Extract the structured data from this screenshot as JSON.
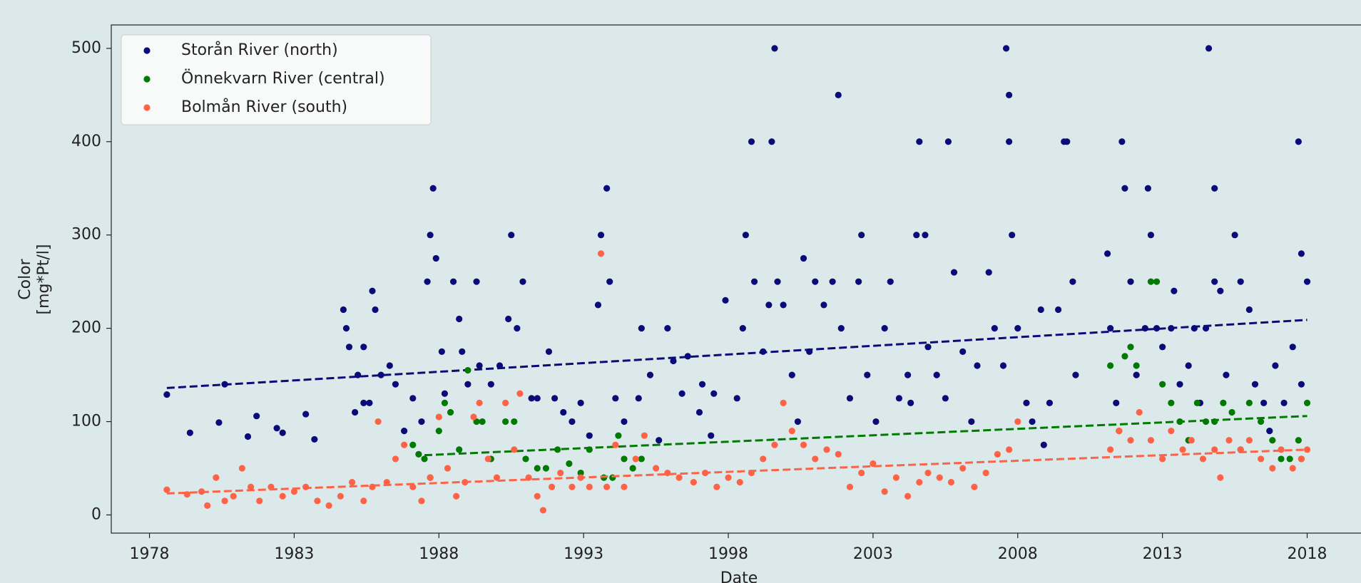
{
  "chart_data": {
    "type": "scatter",
    "xlabel": "Date",
    "ylabel": [
      "Color",
      "[mg*Pt/l]"
    ],
    "xlim": [
      1976.68,
      2019.86
    ],
    "ylim": [
      -19.5,
      525.1
    ],
    "xticks": [
      1978,
      1983,
      1988,
      1993,
      1998,
      2003,
      2008,
      2013,
      2018
    ],
    "yticks": [
      0,
      100,
      200,
      300,
      400,
      500
    ],
    "legend": "upper left",
    "series": [
      {
        "name": "Storån River (north)",
        "color": "#0b0b78",
        "x": [
          1978.6,
          1979.4,
          1980.4,
          1980.6,
          1981.4,
          1981.7,
          1982.4,
          1982.6,
          1983.4,
          1983.7,
          1984.7,
          1984.8,
          1984.9,
          1985.1,
          1985.2,
          1985.4,
          1985.4,
          1985.6,
          1985.7,
          1985.8,
          1986.0,
          1986.3,
          1986.5,
          1986.8,
          1987.1,
          1987.4,
          1987.6,
          1987.7,
          1987.8,
          1987.9,
          1988.1,
          1988.2,
          1988.5,
          1988.7,
          1988.8,
          1989.0,
          1989.3,
          1989.4,
          1989.8,
          1990.1,
          1990.4,
          1990.5,
          1990.7,
          1990.9,
          1991.2,
          1991.4,
          1991.8,
          1992.0,
          1992.3,
          1992.6,
          1992.9,
          1993.2,
          1993.5,
          1993.6,
          1993.8,
          1993.9,
          1994.1,
          1994.4,
          1994.9,
          1995.0,
          1995.3,
          1995.6,
          1995.9,
          1996.1,
          1996.4,
          1996.6,
          1997.0,
          1997.1,
          1997.4,
          1997.5,
          1997.9,
          1998.3,
          1998.5,
          1998.6,
          1998.8,
          1998.9,
          1999.2,
          1999.4,
          1999.5,
          1999.6,
          1999.7,
          1999.9,
          2000.2,
          2000.4,
          2000.6,
          2000.8,
          2001.0,
          2001.3,
          2001.6,
          2001.8,
          2001.9,
          2002.2,
          2002.5,
          2002.6,
          2002.8,
          2003.1,
          2003.4,
          2003.6,
          2003.9,
          2004.2,
          2004.3,
          2004.5,
          2004.6,
          2004.8,
          2004.9,
          2005.2,
          2005.5,
          2005.6,
          2005.8,
          2006.1,
          2006.4,
          2006.6,
          2007.0,
          2007.2,
          2007.5,
          2007.6,
          2007.7,
          2007.7,
          2007.8,
          2008.0,
          2008.3,
          2008.5,
          2008.8,
          2008.9,
          2009.1,
          2009.4,
          2009.6,
          2009.7,
          2009.9,
          2010.0,
          2011.1,
          2011.2,
          2011.4,
          2011.6,
          2011.7,
          2011.9,
          2012.1,
          2012.4,
          2012.5,
          2012.6,
          2012.8,
          2013.0,
          2013.3,
          2013.4,
          2013.6,
          2013.9,
          2014.1,
          2014.3,
          2014.5,
          2014.6,
          2014.8,
          2014.8,
          2015.0,
          2015.2,
          2015.5,
          2015.7,
          2016.0,
          2016.2,
          2016.5,
          2016.7,
          2016.9,
          2017.2,
          2017.5,
          2017.7,
          2017.8,
          2018.0,
          2017.8
        ],
        "values": [
          129,
          88,
          99,
          140,
          84,
          106,
          93,
          88,
          108,
          81,
          220,
          200,
          180,
          110,
          150,
          120,
          180,
          120,
          240,
          220,
          150,
          160,
          140,
          90,
          125,
          100,
          250,
          300,
          350,
          275,
          175,
          130,
          250,
          210,
          175,
          140,
          250,
          160,
          140,
          160,
          210,
          300,
          200,
          250,
          125,
          125,
          175,
          125,
          110,
          100,
          120,
          85,
          225,
          300,
          350,
          250,
          125,
          100,
          125,
          200,
          150,
          80,
          200,
          165,
          130,
          170,
          110,
          140,
          85,
          130,
          230,
          125,
          200,
          300,
          400,
          250,
          175,
          225,
          400,
          500,
          250,
          225,
          150,
          100,
          275,
          175,
          250,
          225,
          250,
          450,
          200,
          125,
          250,
          300,
          150,
          100,
          200,
          250,
          125,
          150,
          120,
          300,
          400,
          300,
          180,
          150,
          125,
          400,
          260,
          175,
          100,
          160,
          260,
          200,
          160,
          500,
          450,
          400,
          300,
          200,
          120,
          100,
          220,
          75,
          120,
          220,
          400,
          400,
          250,
          150,
          280,
          200,
          120,
          400,
          350,
          250,
          150,
          200,
          350,
          300,
          200,
          180,
          200,
          240,
          140,
          160,
          200,
          120,
          200,
          500,
          250,
          350,
          240,
          150,
          300,
          250,
          220,
          140,
          120,
          90,
          160,
          120,
          180,
          400,
          280,
          250,
          140
        ],
        "trend": {
          "x": [
            1978.6,
            2018.0
          ],
          "values": [
            136,
            209
          ]
        }
      },
      {
        "name": "Önnekvarn River (central)",
        "color": "#007a00",
        "x": [
          1987.1,
          1987.3,
          1987.5,
          1987.7,
          1988.0,
          1988.2,
          1988.4,
          1988.7,
          1989.0,
          1989.3,
          1989.5,
          1989.8,
          1990.3,
          1990.6,
          1991.0,
          1991.4,
          1991.7,
          1992.1,
          1992.5,
          1992.9,
          1993.2,
          1993.7,
          1994.0,
          1994.2,
          1994.4,
          1994.7,
          1995.0,
          2011.2,
          2011.5,
          2011.7,
          2011.9,
          2012.1,
          2012.6,
          2012.8,
          2013.0,
          2013.3,
          2013.6,
          2013.9,
          2014.2,
          2014.5,
          2014.8,
          2015.1,
          2015.4,
          2015.7,
          2016.0,
          2016.4,
          2016.8,
          2017.1,
          2017.4,
          2017.7,
          2017.8,
          2018.0
        ],
        "values": [
          75,
          65,
          60,
          40,
          90,
          120,
          110,
          70,
          155,
          100,
          100,
          60,
          100,
          100,
          60,
          50,
          50,
          70,
          55,
          45,
          70,
          40,
          40,
          85,
          60,
          50,
          60,
          160,
          90,
          170,
          180,
          160,
          250,
          250,
          140,
          120,
          100,
          80,
          120,
          100,
          100,
          120,
          110,
          70,
          120,
          100,
          80,
          60,
          60,
          80,
          60,
          120
        ],
        "trend": {
          "x": [
            1987.5,
            2018.0
          ],
          "values": [
            64,
            106
          ]
        }
      },
      {
        "name": "Bolmån River (south)",
        "color": "#ff6347",
        "x": [
          1978.6,
          1979.3,
          1979.8,
          1980.0,
          1980.3,
          1980.6,
          1980.9,
          1981.2,
          1981.5,
          1981.8,
          1982.2,
          1982.6,
          1983.0,
          1983.4,
          1983.8,
          1984.2,
          1984.6,
          1985.0,
          1985.4,
          1985.7,
          1985.9,
          1986.2,
          1986.5,
          1986.8,
          1987.1,
          1987.4,
          1987.7,
          1988.0,
          1988.3,
          1988.6,
          1988.9,
          1989.2,
          1989.4,
          1989.7,
          1990.0,
          1990.3,
          1990.6,
          1990.8,
          1991.1,
          1991.4,
          1991.6,
          1991.9,
          1992.2,
          1992.6,
          1992.9,
          1993.2,
          1993.6,
          1993.8,
          1994.1,
          1994.4,
          1994.8,
          1995.1,
          1995.5,
          1995.9,
          1996.3,
          1996.8,
          1997.2,
          1997.6,
          1998.0,
          1998.4,
          1998.8,
          1999.2,
          1999.6,
          1999.9,
          2000.2,
          2000.6,
          2001.0,
          2001.4,
          2001.8,
          2002.2,
          2002.6,
          2003.0,
          2003.4,
          2003.8,
          2004.2,
          2004.6,
          2004.9,
          2005.3,
          2005.7,
          2006.1,
          2006.5,
          2006.9,
          2007.3,
          2007.7,
          2008.0,
          2011.2,
          2011.5,
          2011.9,
          2012.2,
          2012.6,
          2013.0,
          2013.3,
          2013.7,
          2014.0,
          2014.4,
          2014.8,
          2015.0,
          2015.3,
          2015.7,
          2016.0,
          2016.4,
          2016.8,
          2017.1,
          2017.5,
          2017.8,
          2018.0
        ],
        "values": [
          27,
          22,
          25,
          10,
          40,
          15,
          20,
          50,
          30,
          15,
          30,
          20,
          25,
          30,
          15,
          10,
          20,
          35,
          15,
          30,
          100,
          35,
          60,
          75,
          30,
          15,
          40,
          105,
          50,
          20,
          35,
          105,
          120,
          60,
          40,
          120,
          70,
          130,
          40,
          20,
          5,
          30,
          45,
          30,
          40,
          30,
          280,
          30,
          75,
          30,
          60,
          85,
          50,
          45,
          40,
          35,
          45,
          30,
          40,
          35,
          45,
          60,
          75,
          120,
          90,
          75,
          60,
          70,
          65,
          30,
          45,
          55,
          25,
          40,
          20,
          35,
          45,
          40,
          35,
          50,
          30,
          45,
          65,
          70,
          100,
          70,
          90,
          80,
          110,
          80,
          60,
          90,
          70,
          80,
          60,
          70,
          40,
          80,
          70,
          80,
          60,
          50,
          70,
          50,
          60,
          70
        ],
        "trend": {
          "x": [
            1978.6,
            2018.0
          ],
          "values": [
            23,
            70
          ]
        }
      }
    ]
  }
}
